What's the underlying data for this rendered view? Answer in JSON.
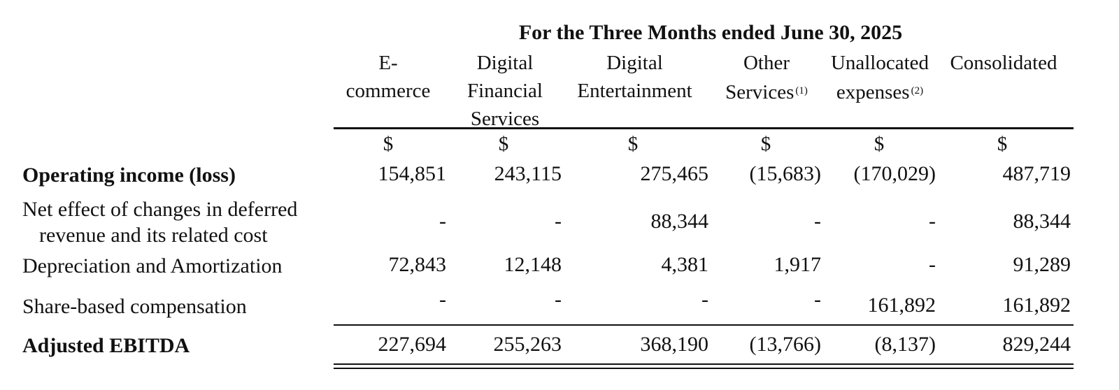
{
  "table": {
    "period_header": "For the Three Months ended June 30, 2025",
    "columns": [
      {
        "line1": "E-",
        "line2": "commerce",
        "line3": "",
        "footnote": "",
        "currency": "$"
      },
      {
        "line1": "Digital",
        "line2": "Financial",
        "line3": "Services",
        "footnote": "",
        "currency": "$"
      },
      {
        "line1": "Digital",
        "line2": "Entertainment",
        "line3": "",
        "footnote": "",
        "currency": "$"
      },
      {
        "line1": "Other",
        "line2": "Services",
        "line3": "",
        "footnote": "(1)",
        "currency": "$"
      },
      {
        "line1": "Unallocated",
        "line2": "expenses",
        "line3": "",
        "footnote": "(2)",
        "currency": "$"
      },
      {
        "line1": "Consolidated",
        "line2": "",
        "line3": "",
        "footnote": "",
        "currency": "$"
      }
    ],
    "rows": [
      {
        "label": "Operating income (loss)",
        "values": [
          "154,851",
          "243,115",
          "275,465",
          "(15,683)",
          "(170,029)",
          "487,719"
        ]
      },
      {
        "label_line1": "Net effect of changes in deferred",
        "label_line2": "revenue and its related cost",
        "values": [
          "-",
          "-",
          "88,344",
          "-",
          "-",
          "88,344"
        ]
      },
      {
        "label": "Depreciation and Amortization",
        "values": [
          "72,843",
          "12,148",
          "4,381",
          "1,917",
          "-",
          "91,289"
        ]
      },
      {
        "label": "Share-based compensation",
        "values": [
          "-",
          "-",
          "-",
          "-",
          "161,892",
          "161,892"
        ]
      },
      {
        "label": "Adjusted EBITDA",
        "values": [
          "227,694",
          "255,263",
          "368,190",
          "(13,766)",
          "(8,137)",
          "829,244"
        ]
      }
    ]
  }
}
